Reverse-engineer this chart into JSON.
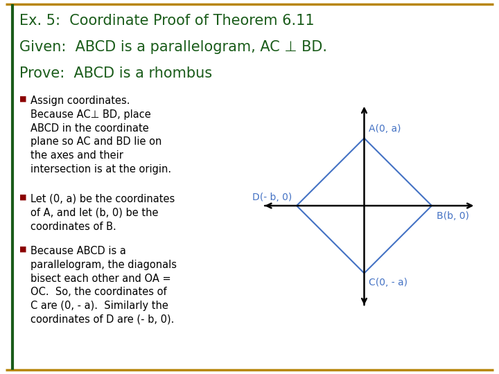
{
  "title_line1": "Ex. 5:  Coordinate Proof of Theorem 6.11",
  "title_line2": "Given:  ABCD is a parallelogram, AC ⊥ BD.",
  "title_line3": "Prove:  ABCD is a rhombus",
  "title_color": "#1a5c1a",
  "background_color": "#ffffff",
  "border_color_top": "#b8860b",
  "border_color_left": "#1a5c1a",
  "bullet_color": "#8B0000",
  "bullet1": "Assign coordinates.\nBecause AC⊥ BD, place\nABCD in the coordinate\nplane so AC and BD lie on\nthe axes and their\nintersection is at the origin.",
  "bullet2": "Let (0, a) be the coordinates\nof A, and let (b, 0) be the\ncoordinates of B.",
  "bullet3": "Because ABCD is a\nparallelogram, the diagonals\nbisect each other and OA =\nOC.  So, the coordinates of\nC are (0, - a).  Similarly the\ncoordinates of D are (- b, 0).",
  "diagram_color": "#4472C4",
  "axis_color": "#000000",
  "label_color": "#4472C4",
  "A": [
    0,
    1
  ],
  "B": [
    1,
    0
  ],
  "C": [
    0,
    -1
  ],
  "D": [
    -1,
    0
  ],
  "A_label": "A(0, a)",
  "B_label": "B(b, 0)",
  "C_label": "C(0, - a)",
  "D_label": "D(- b, 0)"
}
